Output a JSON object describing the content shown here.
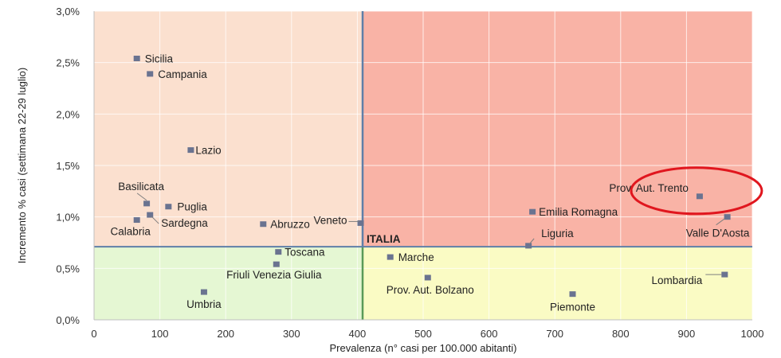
{
  "chart_data": {
    "type": "scatter",
    "xlabel": "Prevalenza  (n° casi per 100.000 abitanti)",
    "ylabel": "Incremento %  casi (settimana 22-29 luglio)",
    "xlim": [
      0,
      1000
    ],
    "ylim": [
      0,
      3.0
    ],
    "x_ticks": [
      0,
      100,
      200,
      300,
      400,
      500,
      600,
      700,
      800,
      900,
      1000
    ],
    "y_ticks": [
      {
        "value": 0.0,
        "label": "0,0%"
      },
      {
        "value": 0.5,
        "label": "0,5%"
      },
      {
        "value": 1.0,
        "label": "1,0%"
      },
      {
        "value": 1.5,
        "label": "1,5%"
      },
      {
        "value": 2.0,
        "label": "2,0%"
      },
      {
        "value": 2.5,
        "label": "2,5%"
      },
      {
        "value": 3.0,
        "label": "3,0%"
      }
    ],
    "grid": true,
    "reference": {
      "name": "ITALIA",
      "x": 408,
      "y": 0.71
    },
    "quadrant_colors": {
      "top_left": "#fbe0cf",
      "top_right": "#f9b3a6",
      "bottom_left": "#e5f7d3",
      "bottom_right": "#fafbc4"
    },
    "marker_color": "#6a7390",
    "reference_line_colors": {
      "vertical": "#5f7fa8",
      "horizontal": "#5f7fa8",
      "vertical_lower": "#5a9a58"
    },
    "highlight": {
      "name": "Prov. Aut. Trento",
      "color": "#e0161e"
    },
    "points": [
      {
        "name": "Sicilia",
        "x": 65,
        "y": 2.54
      },
      {
        "name": "Campania",
        "x": 85,
        "y": 2.39
      },
      {
        "name": "Lazio",
        "x": 147,
        "y": 1.65
      },
      {
        "name": "Basilicata",
        "x": 80,
        "y": 1.13
      },
      {
        "name": "Puglia",
        "x": 113,
        "y": 1.1
      },
      {
        "name": "Sardegna",
        "x": 85,
        "y": 1.02
      },
      {
        "name": "Calabria",
        "x": 65,
        "y": 0.97
      },
      {
        "name": "Abruzzo",
        "x": 257,
        "y": 0.93
      },
      {
        "name": "Veneto",
        "x": 405,
        "y": 0.94
      },
      {
        "name": "Toscana",
        "x": 280,
        "y": 0.66
      },
      {
        "name": "Friuli Venezia Giulia",
        "x": 277,
        "y": 0.54
      },
      {
        "name": "Umbria",
        "x": 167,
        "y": 0.27
      },
      {
        "name": "Marche",
        "x": 450,
        "y": 0.61
      },
      {
        "name": "Prov. Aut. Bolzano",
        "x": 507,
        "y": 0.41
      },
      {
        "name": "Liguria",
        "x": 660,
        "y": 0.72
      },
      {
        "name": "Emilia Romagna",
        "x": 666,
        "y": 1.05
      },
      {
        "name": "Piemonte",
        "x": 727,
        "y": 0.25
      },
      {
        "name": "Lombardia",
        "x": 958,
        "y": 0.44
      },
      {
        "name": "Prov. Aut. Trento",
        "x": 920,
        "y": 1.2
      },
      {
        "name": "Valle D'Aosta",
        "x": 962,
        "y": 1.0
      }
    ]
  }
}
